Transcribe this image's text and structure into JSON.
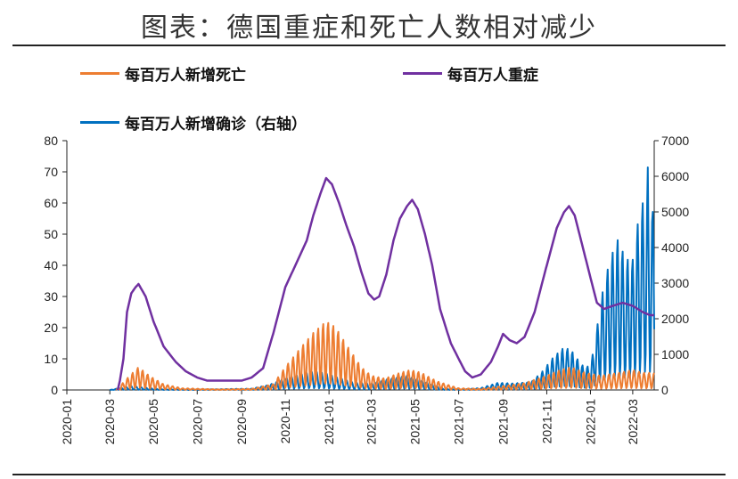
{
  "title": "图表：德国重症和死亡人数相对减少",
  "legend": {
    "deaths": "每百万人新增死亡",
    "icu": "每百万人重症",
    "cases": "每百万人新增确诊（右轴）"
  },
  "colors": {
    "deaths": "#ED7D31",
    "icu": "#7030A0",
    "cases": "#0070C0",
    "axis": "#222222"
  },
  "chart_data": {
    "type": "line",
    "title": "图表：德国重症和死亡人数相对减少",
    "x_ticks": [
      "2020-01",
      "2020-03",
      "2020-05",
      "2020-07",
      "2020-09",
      "2020-11",
      "2021-01",
      "2021-03",
      "2021-05",
      "2021-07",
      "2021-09",
      "2021-11",
      "2022-01",
      "2022-03"
    ],
    "x_range": [
      "2020-01-01",
      "2022-03-31"
    ],
    "y_left": {
      "range": [
        0,
        80
      ],
      "ticks": [
        "0",
        "10",
        "20",
        "30",
        "40",
        "50",
        "60",
        "70",
        "80"
      ]
    },
    "y_right": {
      "range": [
        0,
        7000
      ],
      "ticks": [
        "0",
        "1000",
        "2000",
        "3000",
        "4000",
        "5000",
        "6000",
        "7000"
      ]
    },
    "grid": false,
    "legend_position": "top",
    "series": [
      {
        "name": "每百万人重症",
        "axis": "left",
        "style": "line",
        "points": [
          [
            "2020-03-12",
            0
          ],
          [
            "2020-03-15",
            3
          ],
          [
            "2020-03-20",
            10
          ],
          [
            "2020-03-25",
            25
          ],
          [
            "2020-03-31",
            31
          ],
          [
            "2020-04-06",
            33
          ],
          [
            "2020-04-10",
            34
          ],
          [
            "2020-04-20",
            30
          ],
          [
            "2020-05-01",
            22
          ],
          [
            "2020-05-15",
            14
          ],
          [
            "2020-06-01",
            9
          ],
          [
            "2020-06-15",
            6
          ],
          [
            "2020-07-01",
            4
          ],
          [
            "2020-07-15",
            3
          ],
          [
            "2020-08-01",
            3
          ],
          [
            "2020-08-15",
            3
          ],
          [
            "2020-09-01",
            3
          ],
          [
            "2020-09-15",
            4
          ],
          [
            "2020-10-01",
            7
          ],
          [
            "2020-10-15",
            18
          ],
          [
            "2020-11-01",
            33
          ],
          [
            "2020-11-15",
            40
          ],
          [
            "2020-12-01",
            48
          ],
          [
            "2020-12-10",
            56
          ],
          [
            "2020-12-20",
            63
          ],
          [
            "2020-12-28",
            68
          ],
          [
            "2021-01-05",
            66
          ],
          [
            "2021-01-15",
            60
          ],
          [
            "2021-01-25",
            53
          ],
          [
            "2021-02-05",
            46
          ],
          [
            "2021-02-15",
            38
          ],
          [
            "2021-02-25",
            31
          ],
          [
            "2021-03-05",
            29
          ],
          [
            "2021-03-12",
            30
          ],
          [
            "2021-03-22",
            37
          ],
          [
            "2021-04-01",
            48
          ],
          [
            "2021-04-10",
            55
          ],
          [
            "2021-04-20",
            59
          ],
          [
            "2021-04-27",
            61
          ],
          [
            "2021-05-05",
            58
          ],
          [
            "2021-05-15",
            50
          ],
          [
            "2021-05-25",
            40
          ],
          [
            "2021-06-05",
            26
          ],
          [
            "2021-06-20",
            15
          ],
          [
            "2021-07-01",
            10
          ],
          [
            "2021-07-10",
            6
          ],
          [
            "2021-07-20",
            4
          ],
          [
            "2021-08-01",
            5
          ],
          [
            "2021-08-15",
            9
          ],
          [
            "2021-08-25",
            14
          ],
          [
            "2021-09-01",
            18
          ],
          [
            "2021-09-10",
            16
          ],
          [
            "2021-09-20",
            15
          ],
          [
            "2021-10-01",
            17
          ],
          [
            "2021-10-15",
            25
          ],
          [
            "2021-11-01",
            40
          ],
          [
            "2021-11-15",
            52
          ],
          [
            "2021-11-25",
            57
          ],
          [
            "2021-12-02",
            59
          ],
          [
            "2021-12-10",
            56
          ],
          [
            "2021-12-20",
            47
          ],
          [
            "2022-01-01",
            36
          ],
          [
            "2022-01-10",
            28
          ],
          [
            "2022-01-20",
            26
          ],
          [
            "2022-02-01",
            27
          ],
          [
            "2022-02-15",
            28
          ],
          [
            "2022-03-01",
            27
          ],
          [
            "2022-03-15",
            25
          ],
          [
            "2022-03-25",
            24
          ],
          [
            "2022-03-31",
            24
          ]
        ]
      },
      {
        "name": "每百万人新增死亡",
        "axis": "left",
        "style": "oscillating",
        "period_days": 7,
        "points": [
          [
            "2020-03-10",
            0
          ],
          [
            "2020-03-25",
            2
          ],
          [
            "2020-04-10",
            4
          ],
          [
            "2020-04-25",
            2.5
          ],
          [
            "2020-05-15",
            1
          ],
          [
            "2020-06-10",
            0.3
          ],
          [
            "2020-08-01",
            0.1
          ],
          [
            "2020-09-15",
            0.2
          ],
          [
            "2020-10-15",
            1
          ],
          [
            "2020-11-01",
            4
          ],
          [
            "2020-11-20",
            7
          ],
          [
            "2020-12-10",
            10
          ],
          [
            "2020-12-28",
            12
          ],
          [
            "2021-01-10",
            11
          ],
          [
            "2021-01-25",
            8
          ],
          [
            "2021-02-15",
            4
          ],
          [
            "2021-03-01",
            2.5
          ],
          [
            "2021-03-20",
            2
          ],
          [
            "2021-04-10",
            3
          ],
          [
            "2021-04-25",
            3.5
          ],
          [
            "2021-05-10",
            3
          ],
          [
            "2021-06-01",
            1.5
          ],
          [
            "2021-07-01",
            0.3
          ],
          [
            "2021-08-01",
            0.2
          ],
          [
            "2021-09-01",
            0.7
          ],
          [
            "2021-10-01",
            1.2
          ],
          [
            "2021-11-01",
            2.5
          ],
          [
            "2021-11-20",
            3.5
          ],
          [
            "2021-12-05",
            4
          ],
          [
            "2021-12-25",
            3
          ],
          [
            "2022-01-15",
            2.5
          ],
          [
            "2022-02-10",
            3
          ],
          [
            "2022-03-01",
            3.5
          ],
          [
            "2022-03-15",
            3
          ],
          [
            "2022-03-31",
            3
          ]
        ]
      },
      {
        "name": "每百万人新增确诊（右轴）",
        "axis": "right",
        "style": "oscillating",
        "period_days": 7,
        "points": [
          [
            "2020-03-01",
            0
          ],
          [
            "2020-03-15",
            30
          ],
          [
            "2020-03-31",
            60
          ],
          [
            "2020-04-15",
            40
          ],
          [
            "2020-05-15",
            10
          ],
          [
            "2020-07-01",
            6
          ],
          [
            "2020-08-15",
            15
          ],
          [
            "2020-09-15",
            20
          ],
          [
            "2020-10-10",
            80
          ],
          [
            "2020-11-01",
            180
          ],
          [
            "2020-11-20",
            230
          ],
          [
            "2020-12-10",
            280
          ],
          [
            "2020-12-25",
            260
          ],
          [
            "2021-01-10",
            200
          ],
          [
            "2021-02-05",
            110
          ],
          [
            "2021-03-01",
            100
          ],
          [
            "2021-03-25",
            170
          ],
          [
            "2021-04-20",
            220
          ],
          [
            "2021-05-15",
            130
          ],
          [
            "2021-06-10",
            20
          ],
          [
            "2021-07-05",
            8
          ],
          [
            "2021-08-01",
            30
          ],
          [
            "2021-08-25",
            110
          ],
          [
            "2021-09-15",
            100
          ],
          [
            "2021-10-10",
            120
          ],
          [
            "2021-10-25",
            270
          ],
          [
            "2021-11-10",
            500
          ],
          [
            "2021-11-25",
            650
          ],
          [
            "2021-12-05",
            610
          ],
          [
            "2021-12-20",
            380
          ],
          [
            "2022-01-01",
            350
          ],
          [
            "2022-01-08",
            800
          ],
          [
            "2022-01-18",
            1500
          ],
          [
            "2022-01-28",
            2000
          ],
          [
            "2022-02-08",
            2300
          ],
          [
            "2022-02-20",
            2000
          ],
          [
            "2022-03-01",
            2000
          ],
          [
            "2022-03-10",
            2700
          ],
          [
            "2022-03-22",
            3100
          ],
          [
            "2022-03-31",
            2700
          ]
        ],
        "spikes": [
          [
            "2022-03-22",
            6250
          ],
          [
            "2022-03-29",
            5000
          ]
        ]
      }
    ]
  }
}
